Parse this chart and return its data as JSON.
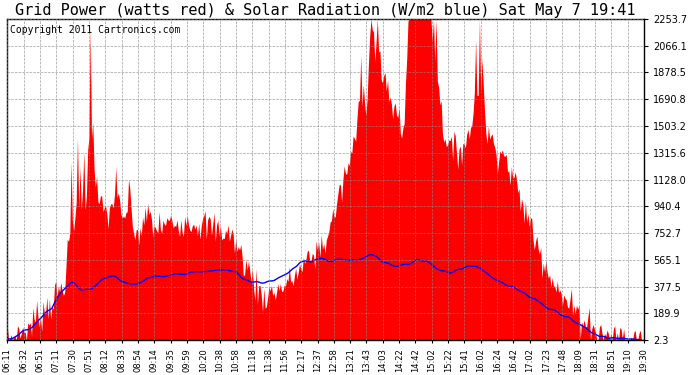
{
  "title": "Grid Power (watts red) & Solar Radiation (W/m2 blue) Sat May 7 19:41",
  "copyright": "Copyright 2011 Cartronics.com",
  "yticks": [
    2253.7,
    2066.1,
    1878.5,
    1690.8,
    1503.2,
    1315.6,
    1128.0,
    940.4,
    752.7,
    565.1,
    377.5,
    189.9,
    2.3
  ],
  "xtick_labels": [
    "06:11",
    "06:32",
    "06:51",
    "07:11",
    "07:30",
    "07:51",
    "08:12",
    "08:33",
    "08:54",
    "09:14",
    "09:35",
    "09:59",
    "10:20",
    "10:38",
    "10:58",
    "11:18",
    "11:38",
    "11:56",
    "12:17",
    "12:37",
    "12:58",
    "13:21",
    "13:43",
    "14:03",
    "14:22",
    "14:42",
    "15:02",
    "15:22",
    "15:41",
    "16:02",
    "16:24",
    "16:42",
    "17:02",
    "17:23",
    "17:48",
    "18:09",
    "18:31",
    "18:51",
    "19:10",
    "19:30"
  ],
  "ymax": 2253.7,
  "ymin": 0,
  "bg_color": "#ffffff",
  "fill_color": "#ff0000",
  "line_color": "#0000ff",
  "grid_color": "#888888",
  "title_fontsize": 11,
  "copyright_fontsize": 7,
  "n_points": 500
}
